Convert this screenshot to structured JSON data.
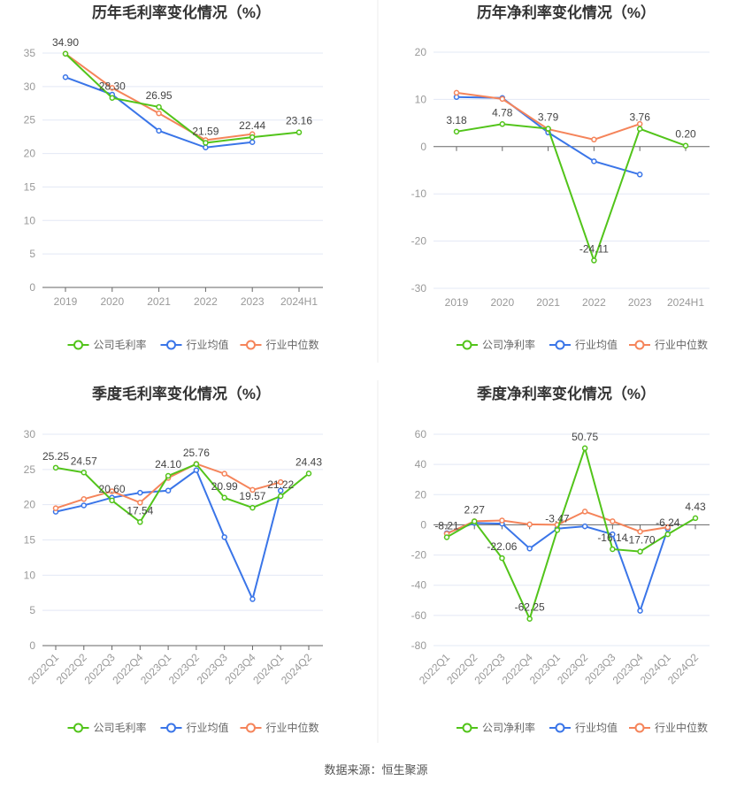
{
  "source": "数据来源：恒生聚源",
  "colors": {
    "company": "#52c41a",
    "avg": "#3a75e8",
    "median": "#f5845a",
    "grid": "#e3e8f5",
    "axis": "#666666"
  },
  "chart_data": [
    {
      "type": "line",
      "title": "历年毛利率变化情况（%）",
      "categories": [
        "2019",
        "2020",
        "2021",
        "2022",
        "2023",
        "2024H1"
      ],
      "ylim": [
        0,
        35
      ],
      "yticks": [
        0,
        5,
        10,
        15,
        20,
        25,
        30,
        35
      ],
      "legend": [
        "公司毛利率",
        "行业均值",
        "行业中位数"
      ],
      "legend_position": "bottom",
      "series": [
        {
          "name": "公司毛利率",
          "key": "company",
          "values": [
            34.9,
            28.3,
            26.95,
            21.59,
            22.44,
            23.16
          ],
          "labels": [
            "34.90",
            "28.30",
            "26.95",
            "21.59",
            "22.44",
            "23.16"
          ]
        },
        {
          "name": "行业均值",
          "key": "avg",
          "values": [
            31.4,
            28.8,
            23.4,
            20.9,
            21.7,
            null
          ]
        },
        {
          "name": "行业中位数",
          "key": "median",
          "values": [
            34.9,
            29.8,
            26.0,
            22.0,
            22.9,
            null
          ]
        }
      ]
    },
    {
      "type": "line",
      "title": "历年净利率变化情况（%）",
      "categories": [
        "2019",
        "2020",
        "2021",
        "2022",
        "2023",
        "2024H1"
      ],
      "ylim": [
        -30,
        20
      ],
      "yticks": [
        -30,
        -20,
        -10,
        0,
        10,
        20
      ],
      "legend": [
        "公司净利率",
        "行业均值",
        "行业中位数"
      ],
      "legend_position": "bottom",
      "series": [
        {
          "name": "公司净利率",
          "key": "company",
          "values": [
            3.18,
            4.78,
            3.79,
            -24.11,
            3.76,
            0.2
          ],
          "labels": [
            "3.18",
            "4.78",
            "3.79",
            "-24.11",
            "3.76",
            "0.20"
          ]
        },
        {
          "name": "行业均值",
          "key": "avg",
          "values": [
            10.5,
            10.3,
            3.0,
            -3.1,
            -5.9,
            null
          ]
        },
        {
          "name": "行业中位数",
          "key": "median",
          "values": [
            11.4,
            10.1,
            3.7,
            1.5,
            4.8,
            null
          ]
        }
      ]
    },
    {
      "type": "line",
      "title": "季度毛利率变化情况（%）",
      "categories": [
        "2022Q1",
        "2022Q2",
        "2022Q3",
        "2022Q4",
        "2023Q1",
        "2023Q2",
        "2023Q3",
        "2023Q4",
        "2024Q1",
        "2024Q2"
      ],
      "ylim": [
        0,
        30
      ],
      "yticks": [
        0,
        5,
        10,
        15,
        20,
        25,
        30
      ],
      "legend": [
        "公司毛利率",
        "行业均值",
        "行业中位数"
      ],
      "legend_position": "bottom",
      "series": [
        {
          "name": "公司毛利率",
          "key": "company",
          "values": [
            25.25,
            24.57,
            20.6,
            17.54,
            24.1,
            25.76,
            20.99,
            19.57,
            21.22,
            24.43
          ],
          "labels": [
            "25.25",
            "24.57",
            "20.60",
            "17.54",
            "24.10",
            "25.76",
            "20.99",
            "19.57",
            "21.22",
            "24.43"
          ]
        },
        {
          "name": "行业均值",
          "key": "avg",
          "values": [
            19.0,
            19.9,
            21.0,
            21.7,
            22.0,
            24.9,
            15.4,
            6.6,
            22.0,
            null
          ]
        },
        {
          "name": "行业中位数",
          "key": "median",
          "values": [
            19.5,
            20.8,
            21.9,
            20.3,
            23.8,
            25.8,
            24.4,
            22.1,
            23.2,
            null
          ]
        }
      ]
    },
    {
      "type": "line",
      "title": "季度净利率变化情况（%）",
      "categories": [
        "2022Q1",
        "2022Q2",
        "2022Q3",
        "2022Q4",
        "2023Q1",
        "2023Q2",
        "2023Q3",
        "2023Q4",
        "2024Q1",
        "2024Q2"
      ],
      "ylim": [
        -80,
        60
      ],
      "yticks": [
        -80,
        -60,
        -40,
        -20,
        0,
        20,
        40,
        60
      ],
      "legend": [
        "公司净利率",
        "行业均值",
        "行业中位数"
      ],
      "legend_position": "bottom",
      "series": [
        {
          "name": "公司净利率",
          "key": "company",
          "values": [
            -8.21,
            2.27,
            -22.06,
            -62.25,
            -3.47,
            50.75,
            -16.14,
            -17.7,
            -6.24,
            4.43
          ],
          "labels": [
            "-8.21",
            "2.27",
            "-22.06",
            "-62.25",
            "-3.47",
            "50.75",
            "-16.14",
            "-17.70",
            "-6.24",
            "4.43"
          ]
        },
        {
          "name": "行业均值",
          "key": "avg",
          "values": [
            -5.5,
            1.2,
            0.8,
            -15.7,
            -2.5,
            -1.0,
            -6.3,
            -56.9,
            -2.7,
            null
          ]
        },
        {
          "name": "行业中位数",
          "key": "median",
          "values": [
            -5.9,
            2.4,
            2.9,
            0.3,
            0.0,
            8.8,
            2.4,
            -4.5,
            -1.6,
            null
          ]
        }
      ]
    }
  ]
}
